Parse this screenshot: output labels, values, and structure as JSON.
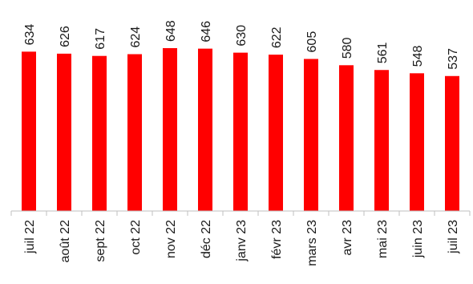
{
  "chart_data": {
    "type": "bar",
    "categories": [
      "juil 22",
      "août 22",
      "sept 22",
      "oct 22",
      "nov 22",
      "déc 22",
      "janv 23",
      "févr 23",
      "mars 23",
      "avr 23",
      "mai 23",
      "juin 23",
      "juil 23"
    ],
    "values": [
      634,
      626,
      617,
      624,
      648,
      646,
      630,
      622,
      605,
      580,
      561,
      548,
      537
    ],
    "title": "",
    "xlabel": "",
    "ylabel": "",
    "ylim": [
      0,
      680
    ],
    "grid": false,
    "legend": "none",
    "data_labels": true,
    "bar_color": "#ff0000",
    "axis_color": "#bfbfbf"
  }
}
